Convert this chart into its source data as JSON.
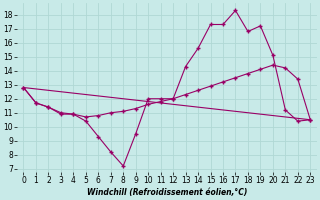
{
  "xlabel": "Windchill (Refroidissement éolien,°C)",
  "background_color": "#c8eae8",
  "grid_color": "#b0d8d4",
  "line_color": "#990066",
  "x_ticks": [
    0,
    1,
    2,
    3,
    4,
    5,
    6,
    7,
    8,
    9,
    10,
    11,
    12,
    13,
    14,
    15,
    16,
    17,
    18,
    19,
    20,
    21,
    22,
    23
  ],
  "y_ticks": [
    7,
    8,
    9,
    10,
    11,
    12,
    13,
    14,
    15,
    16,
    17,
    18
  ],
  "ylim": [
    6.8,
    18.8
  ],
  "xlim": [
    -0.5,
    23.5
  ],
  "line1_x": [
    0,
    1,
    2,
    3,
    4,
    5,
    6,
    7,
    8,
    9,
    10,
    11,
    12,
    13,
    14,
    15,
    16,
    17,
    18,
    19,
    20,
    21,
    22,
    23
  ],
  "line1_y": [
    12.8,
    11.7,
    11.4,
    10.9,
    10.9,
    10.4,
    9.3,
    8.2,
    7.2,
    9.5,
    12.0,
    12.0,
    12.0,
    14.3,
    15.6,
    17.3,
    17.3,
    18.3,
    16.8,
    17.2,
    15.1,
    11.2,
    10.4,
    10.5
  ],
  "line2_x": [
    0,
    1,
    2,
    3,
    4,
    5,
    6,
    7,
    8,
    9,
    10,
    11,
    12,
    13,
    14,
    15,
    16,
    17,
    18,
    19,
    20,
    21,
    22,
    23
  ],
  "line2_y": [
    12.8,
    11.7,
    11.4,
    11.0,
    10.9,
    10.7,
    10.8,
    11.0,
    11.1,
    11.3,
    11.6,
    11.8,
    12.0,
    12.3,
    12.6,
    12.9,
    13.2,
    13.5,
    13.8,
    14.1,
    14.4,
    14.2,
    13.4,
    10.5
  ],
  "line3_x": [
    0,
    23
  ],
  "line3_y": [
    12.8,
    10.5
  ],
  "xlabel_fontsize": 5.5,
  "tick_fontsize": 5.5
}
